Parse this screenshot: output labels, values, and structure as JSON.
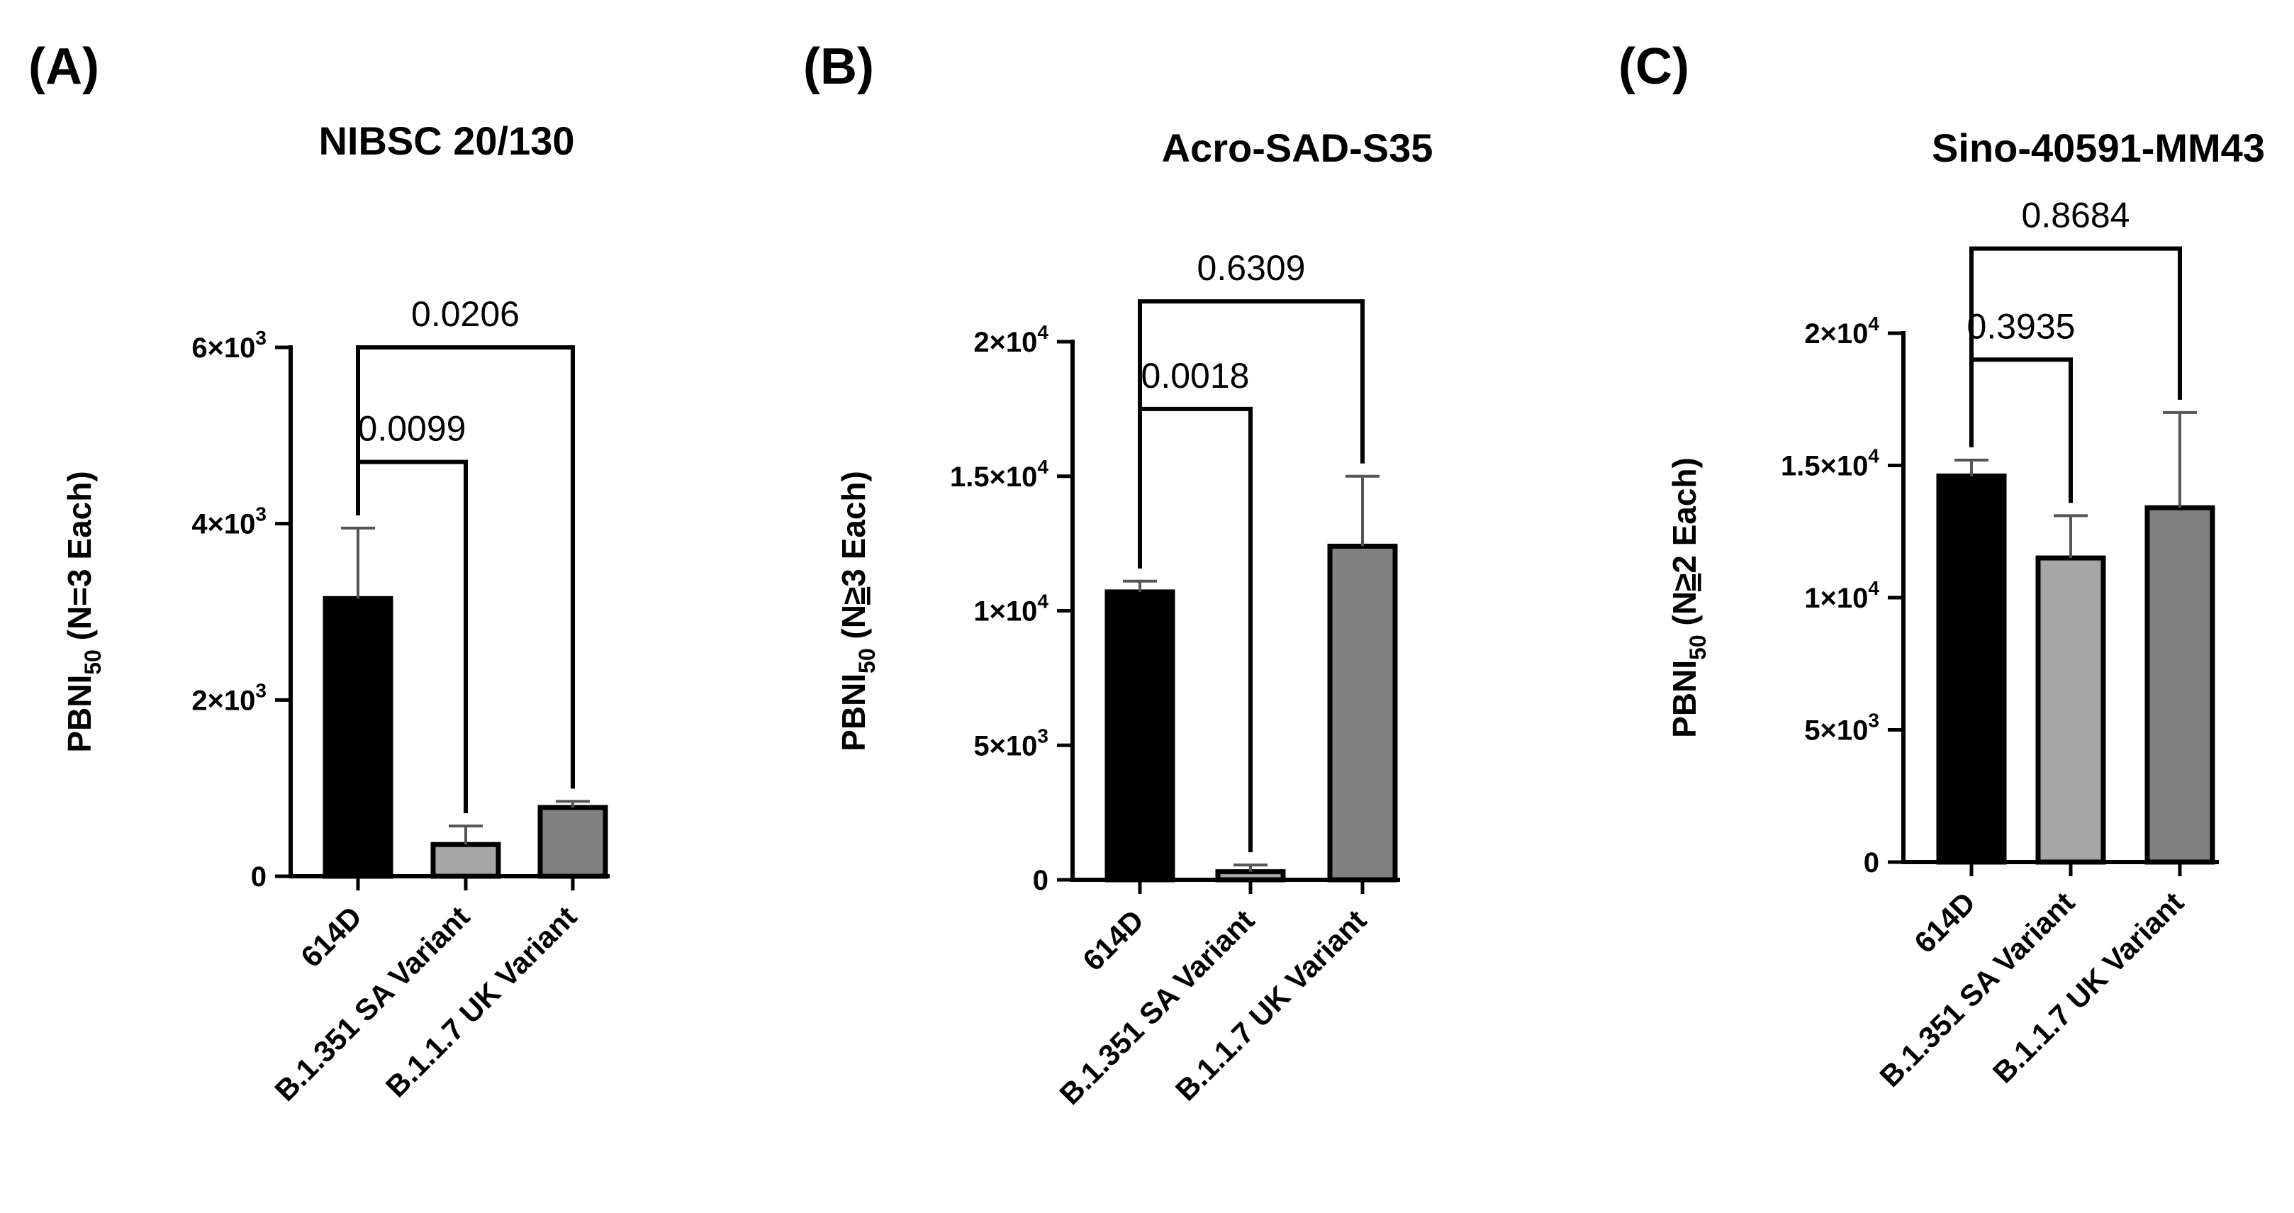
{
  "chart_data": [
    {
      "type": "bar",
      "panel": "(A)",
      "title": "NIBSC 20/130",
      "ylabel": {
        "main": "PBNI",
        "sub": "50",
        "tail": " (N=3 Each)",
        "underline": false
      },
      "categories": [
        "614D",
        "B.1.351 SA Variant",
        "B.1.1.7 UK Variant"
      ],
      "values": [
        3150,
        360,
        780
      ],
      "errors": [
        800,
        210,
        70
      ],
      "colors": [
        "#000000",
        "#a6a6a6",
        "#808080"
      ],
      "ylim": [
        0,
        6000
      ],
      "yticks": [
        {
          "value": 0,
          "mant": "0",
          "exp": ""
        },
        {
          "value": 2000,
          "mant": "2×10",
          "exp": "3"
        },
        {
          "value": 4000,
          "mant": "4×10",
          "exp": "3"
        },
        {
          "value": 6000,
          "mant": "6×10",
          "exp": "3"
        }
      ],
      "comparisons": [
        {
          "from": 0,
          "to": 1,
          "label": "0.0099",
          "level": 4700
        },
        {
          "from": 0,
          "to": 2,
          "label": "0.0206",
          "level": 6000
        }
      ]
    },
    {
      "type": "bar",
      "panel": "(B)",
      "title": "Acro-SAD-S35",
      "ylabel": {
        "main": "PBNI",
        "sub": "50",
        "tail": " (N",
        "und": "≥",
        "tail2": "3 Each)",
        "underline": true
      },
      "categories": [
        "614D",
        "B.1.351 SA Variant",
        "B.1.1.7 UK Variant"
      ],
      "values": [
        10700,
        300,
        12400
      ],
      "errors": [
        400,
        250,
        2600
      ],
      "colors": [
        "#000000",
        "#a6a6a6",
        "#808080"
      ],
      "ylim": [
        0,
        20000
      ],
      "yticks": [
        {
          "value": 0,
          "mant": "0",
          "exp": ""
        },
        {
          "value": 5000,
          "mant": "5×10",
          "exp": "3"
        },
        {
          "value": 10000,
          "mant": "1×10",
          "exp": "4"
        },
        {
          "value": 15000,
          "mant": "1.5×10",
          "exp": "4"
        },
        {
          "value": 20000,
          "mant": "2×10",
          "exp": "4"
        }
      ],
      "comparisons": [
        {
          "from": 0,
          "to": 1,
          "label": "0.0018",
          "level": 17500
        },
        {
          "from": 0,
          "to": 2,
          "label": "0.6309",
          "level": 21500
        }
      ]
    },
    {
      "type": "bar",
      "panel": "(C)",
      "title": "Sino-40591-MM43",
      "ylabel": {
        "main": "PBNI",
        "sub": "50",
        "tail": " (N",
        "und": "≥",
        "tail2": "2 Each)",
        "underline": true
      },
      "categories": [
        "614D",
        "B.1.351 SA Variant",
        "B.1.1.7 UK Variant"
      ],
      "values": [
        14600,
        11500,
        13400
      ],
      "errors": [
        600,
        1600,
        3600
      ],
      "colors": [
        "#000000",
        "#a6a6a6",
        "#808080"
      ],
      "ylim": [
        0,
        20000
      ],
      "yticks": [
        {
          "value": 0,
          "mant": "0",
          "exp": ""
        },
        {
          "value": 5000,
          "mant": "5×10",
          "exp": "3"
        },
        {
          "value": 10000,
          "mant": "1×10",
          "exp": "4"
        },
        {
          "value": 15000,
          "mant": "1.5×10",
          "exp": "4"
        },
        {
          "value": 20000,
          "mant": "2×10",
          "exp": "4"
        }
      ],
      "comparisons": [
        {
          "from": 0,
          "to": 1,
          "label": "0.3935",
          "level": 19000
        },
        {
          "from": 0,
          "to": 2,
          "label": "0.8684",
          "level": 23200
        }
      ]
    }
  ]
}
